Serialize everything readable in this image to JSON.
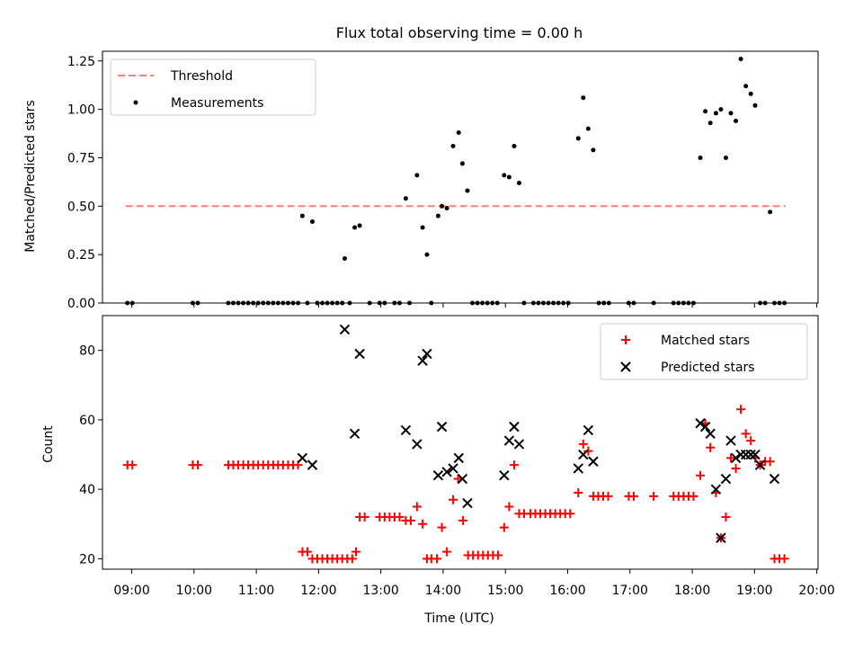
{
  "figure": {
    "title": "Flux total observing time = 0.00 h",
    "xlabel": "Time (UTC)"
  },
  "chart_data": [
    {
      "type": "scatter",
      "panel": "top",
      "ylabel": "Matched/Predicted stars",
      "ylim": [
        0,
        1.3
      ],
      "yticks": [
        0.0,
        0.25,
        0.5,
        0.75,
        1.0,
        1.25
      ],
      "ytick_labels": [
        "0.00",
        "0.25",
        "0.50",
        "0.75",
        "1.00",
        "1.25"
      ],
      "xlim": [
        8.53,
        20.02
      ],
      "legend_position": "upper-left",
      "legend": [
        "Threshold",
        "Measurements"
      ],
      "threshold": {
        "name": "Threshold",
        "value": 0.5,
        "x_range": [
          8.9,
          19.5
        ],
        "color": "#ff7f7f"
      },
      "series": [
        {
          "name": "Measurements",
          "color": "#000000",
          "x": [
            8.93,
            9.01,
            9.98,
            10.06,
            10.55,
            10.63,
            10.71,
            10.79,
            10.87,
            10.95,
            11.03,
            11.11,
            11.19,
            11.27,
            11.35,
            11.43,
            11.51,
            11.59,
            11.67,
            11.74,
            11.82,
            11.9,
            11.98,
            12.06,
            12.14,
            12.22,
            12.3,
            12.38,
            12.42,
            12.5,
            12.58,
            12.66,
            12.82,
            12.98,
            13.06,
            13.22,
            13.3,
            13.4,
            13.46,
            13.58,
            13.67,
            13.74,
            13.81,
            13.92,
            13.98,
            14.06,
            14.16,
            14.25,
            14.31,
            14.39,
            14.47,
            14.55,
            14.63,
            14.71,
            14.79,
            14.87,
            14.98,
            15.06,
            15.14,
            15.22,
            15.3,
            15.45,
            15.53,
            15.61,
            15.69,
            15.77,
            15.85,
            15.93,
            16.01,
            16.17,
            16.25,
            16.33,
            16.41,
            16.5,
            16.58,
            16.66,
            16.98,
            17.06,
            17.38,
            17.7,
            17.78,
            17.86,
            17.94,
            18.02,
            18.13,
            18.21,
            18.29,
            18.38,
            18.46,
            18.54,
            18.62,
            18.7,
            18.78,
            18.86,
            18.94,
            19.01,
            19.09,
            19.17,
            19.25,
            19.32,
            19.4,
            19.48
          ],
          "y": [
            0,
            0,
            0,
            0,
            0,
            0,
            0,
            0,
            0,
            0,
            0,
            0,
            0,
            0,
            0,
            0,
            0,
            0,
            0,
            0.45,
            0,
            0.42,
            0,
            0,
            0,
            0,
            0,
            0,
            0.23,
            0,
            0.39,
            0.4,
            0,
            0,
            0,
            0,
            0,
            0.54,
            0,
            0.66,
            0.39,
            0.25,
            0,
            0.45,
            0.5,
            0.49,
            0.81,
            0.88,
            0.72,
            0.58,
            0,
            0,
            0,
            0,
            0,
            0,
            0.66,
            0.65,
            0.81,
            0.62,
            0,
            0,
            0,
            0,
            0,
            0,
            0,
            0,
            0,
            0.85,
            1.06,
            0.9,
            0.79,
            0,
            0,
            0,
            0,
            0,
            0,
            0,
            0,
            0,
            0,
            0,
            0.75,
            0.99,
            0.93,
            0.98,
            1.0,
            0.75,
            0.98,
            0.94,
            1.26,
            1.12,
            1.08,
            1.02,
            0,
            0,
            0.47,
            0,
            0,
            0
          ]
        }
      ]
    },
    {
      "type": "scatter",
      "panel": "bottom",
      "ylabel": "Count",
      "ylim": [
        17,
        90
      ],
      "yticks": [
        20,
        40,
        60,
        80
      ],
      "ytick_labels": [
        "20",
        "40",
        "60",
        "80"
      ],
      "xlim": [
        8.53,
        20.02
      ],
      "xticks": [
        9,
        10,
        11,
        12,
        13,
        14,
        15,
        16,
        17,
        18,
        19,
        20
      ],
      "xtick_labels": [
        "09:00",
        "10:00",
        "11:00",
        "12:00",
        "13:00",
        "14:00",
        "15:00",
        "16:00",
        "17:00",
        "18:00",
        "19:00",
        "20:00"
      ],
      "legend_position": "upper-right",
      "legend": [
        "Matched stars",
        "Predicted stars"
      ],
      "series": [
        {
          "name": "Matched stars",
          "marker": "+",
          "color": "#ff0000",
          "x": [
            8.93,
            9.01,
            9.98,
            10.06,
            10.55,
            10.63,
            10.71,
            10.79,
            10.87,
            10.95,
            11.03,
            11.11,
            11.19,
            11.27,
            11.35,
            11.43,
            11.51,
            11.59,
            11.67,
            11.74,
            11.82,
            11.9,
            11.98,
            12.06,
            12.14,
            12.22,
            12.3,
            12.38,
            12.46,
            12.54,
            12.6,
            12.66,
            12.74,
            12.98,
            13.06,
            13.14,
            13.22,
            13.3,
            13.4,
            13.48,
            13.58,
            13.67,
            13.74,
            13.81,
            13.9,
            13.98,
            14.06,
            14.16,
            14.24,
            14.32,
            14.4,
            14.48,
            14.56,
            14.64,
            14.72,
            14.8,
            14.88,
            14.98,
            15.06,
            15.14,
            15.22,
            15.3,
            15.4,
            15.48,
            15.56,
            15.64,
            15.72,
            15.8,
            15.88,
            15.96,
            16.04,
            16.17,
            16.25,
            16.33,
            16.41,
            16.49,
            16.57,
            16.65,
            16.98,
            17.06,
            17.38,
            17.7,
            17.78,
            17.86,
            17.94,
            18.02,
            18.13,
            18.21,
            18.29,
            18.38,
            18.46,
            18.54,
            18.62,
            18.7,
            18.78,
            18.86,
            18.94,
            19.01,
            19.09,
            19.17,
            19.25,
            19.32,
            19.4,
            19.48
          ],
          "y": [
            47,
            47,
            47,
            47,
            47,
            47,
            47,
            47,
            47,
            47,
            47,
            47,
            47,
            47,
            47,
            47,
            47,
            47,
            47,
            22,
            22,
            20,
            20,
            20,
            20,
            20,
            20,
            20,
            20,
            20,
            22,
            32,
            32,
            32,
            32,
            32,
            32,
            32,
            31,
            31,
            35,
            30,
            20,
            20,
            20,
            29,
            22,
            37,
            43,
            31,
            21,
            21,
            21,
            21,
            21,
            21,
            21,
            29,
            35,
            47,
            33,
            33,
            33,
            33,
            33,
            33,
            33,
            33,
            33,
            33,
            33,
            39,
            53,
            51,
            38,
            38,
            38,
            38,
            38,
            38,
            38,
            38,
            38,
            38,
            38,
            38,
            44,
            59,
            52,
            39,
            26,
            32,
            49,
            46,
            63,
            56,
            54,
            49,
            47,
            48,
            48,
            20,
            20,
            20
          ]
        },
        {
          "name": "Predicted stars",
          "marker": "x",
          "color": "#000000",
          "x": [
            11.74,
            11.9,
            12.42,
            12.58,
            12.66,
            13.4,
            13.58,
            13.67,
            13.74,
            13.92,
            13.98,
            14.06,
            14.16,
            14.25,
            14.31,
            14.39,
            14.98,
            15.06,
            15.14,
            15.22,
            16.17,
            16.25,
            16.33,
            16.41,
            18.13,
            18.21,
            18.29,
            18.38,
            18.46,
            18.54,
            18.62,
            18.7,
            18.78,
            18.86,
            18.94,
            19.01,
            19.09,
            19.32
          ],
          "y": [
            49,
            47,
            86,
            56,
            79,
            57,
            53,
            77,
            79,
            44,
            58,
            45,
            46,
            49,
            43,
            36,
            44,
            54,
            58,
            53,
            46,
            50,
            57,
            48,
            59,
            58,
            56,
            40,
            26,
            43,
            54,
            49,
            50,
            50,
            50,
            50,
            47,
            43
          ]
        }
      ]
    }
  ]
}
